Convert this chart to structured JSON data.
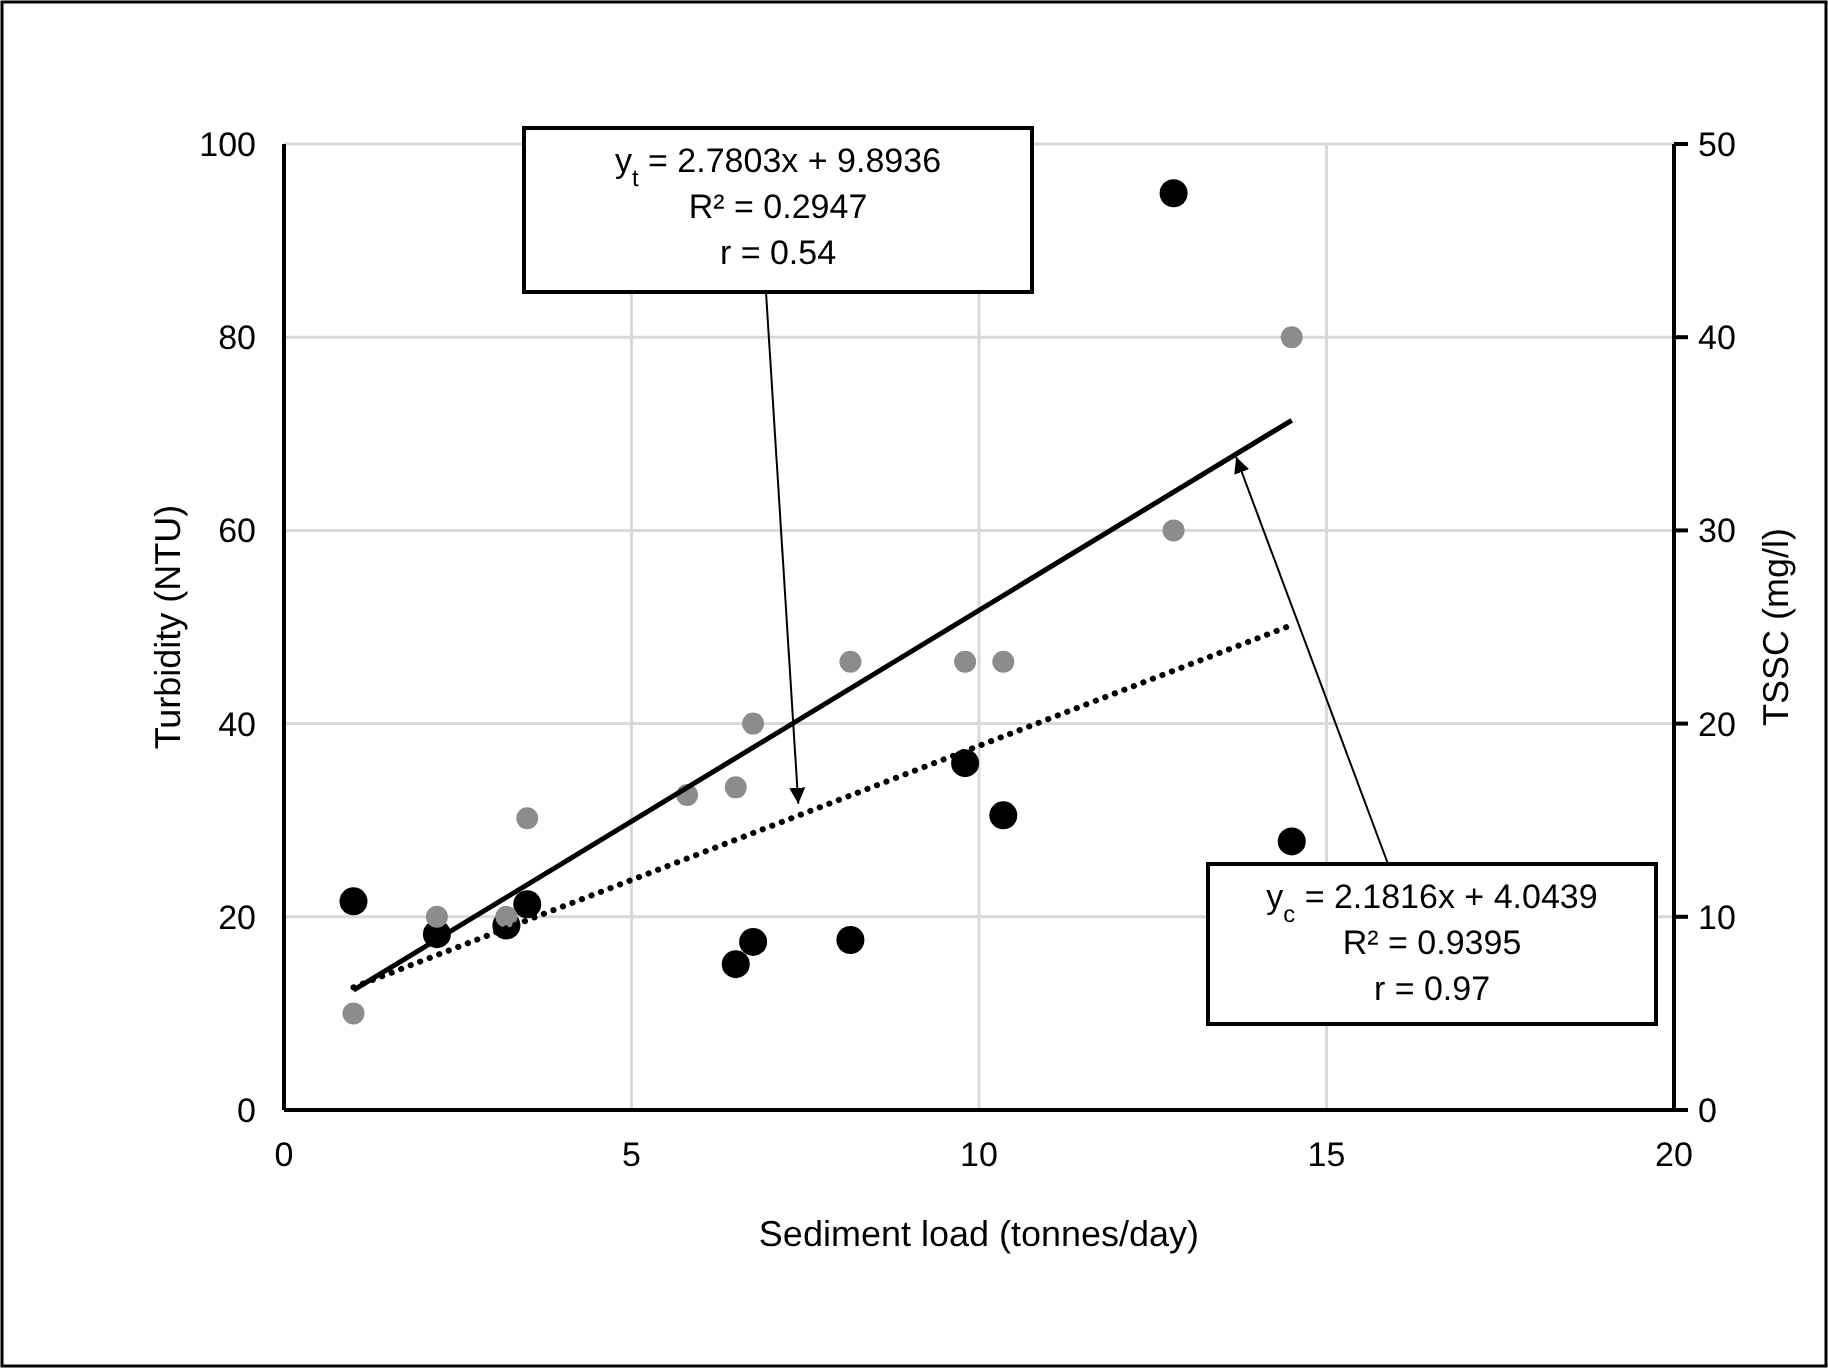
{
  "chart_data": {
    "type": "scatter",
    "xlabel": "Sediment load (tonnes/day)",
    "ylabel": "Turbidity (NTU)",
    "y2label": "TSSC (mg/l)",
    "xlim": [
      0,
      20
    ],
    "xticks": [
      0,
      5,
      10,
      15,
      20
    ],
    "ylim": [
      0,
      100
    ],
    "yticks": [
      0,
      20,
      40,
      60,
      80,
      100
    ],
    "y2lim": [
      0,
      50
    ],
    "y2ticks": [
      0,
      10,
      20,
      30,
      40,
      50
    ],
    "grid": true,
    "marker": "circle",
    "series": [
      {
        "color": "#000000",
        "x": [
          1.0,
          2.2,
          3.2,
          3.5,
          6.5,
          6.75,
          8.15,
          9.8,
          10.35,
          12.8,
          14.5
        ],
        "values": [
          21.6,
          18.2,
          19.1,
          21.3,
          15.1,
          17.4,
          17.6,
          35.9,
          30.5,
          94.9,
          27.8
        ]
      },
      {
        "color": "#8c8c8c",
        "axis": "y2",
        "x": [
          1.0,
          2.2,
          3.2,
          3.5,
          5.8,
          6.5,
          6.75,
          8.15,
          9.8,
          10.35,
          12.8,
          14.5
        ],
        "values": [
          5,
          10,
          10,
          15.1,
          16.3,
          16.7,
          20,
          23.2,
          23.2,
          23.2,
          30,
          40
        ]
      },
      {
        "type": "line",
        "color": "#000000",
        "axis": "y2",
        "line_style": "solid",
        "marker": "none",
        "x": [
          1.0,
          14.5
        ],
        "values": [
          6.2,
          35.7
        ]
      },
      {
        "type": "line",
        "color": "#000000",
        "line_style": "dotted",
        "marker": "none",
        "x": [
          1.0,
          14.5
        ],
        "values": [
          12.7,
          50.2
        ]
      }
    ],
    "annotations": [
      {
        "text": "y$_{t}$ = 2.7803x + 9.8936\nR² = 0.2947\nr = 0.54",
        "x": 7.4,
        "y": 31.7
      },
      {
        "text": "y$_{c}$ = 2.1816x + 4.0439\nR² = 0.9395\nr = 0.97",
        "x": 13.7,
        "y": 67.6
      }
    ]
  }
}
